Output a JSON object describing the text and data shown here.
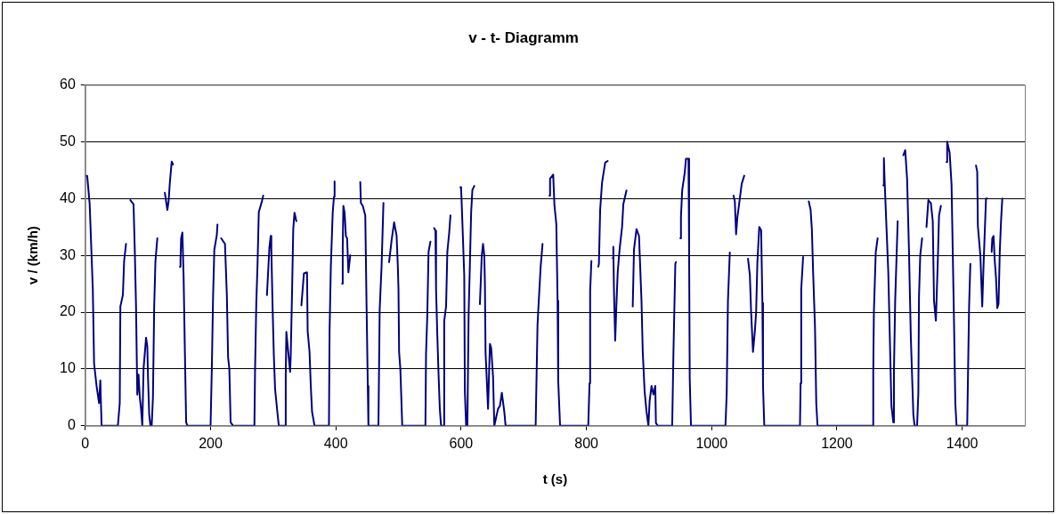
{
  "chart_data": {
    "type": "line",
    "title": "v - t- Diagramm",
    "xlabel": "t (s)",
    "ylabel": "v / (km/h)",
    "xlim": [
      0,
      1500
    ],
    "xticks": [
      0,
      200,
      400,
      600,
      800,
      1000,
      1200,
      1400
    ],
    "ylim": [
      0,
      60
    ],
    "yticks": [
      0,
      10,
      20,
      30,
      40,
      50,
      60
    ],
    "grid": "y",
    "legend": false,
    "marker": "none",
    "line_style": "solid",
    "series": [
      {
        "color": "#000080",
        "x": [
          0,
          3,
          7,
          12,
          14,
          18,
          22,
          24,
          26,
          52,
          55,
          56,
          60,
          62,
          65,
          68,
          72,
          77,
          79,
          81,
          83,
          85,
          87,
          89,
          91,
          93,
          97,
          99,
          100,
          102,
          104,
          106,
          108,
          110,
          112,
          115,
          121,
          127,
          131,
          133,
          135,
          138,
          140,
          145,
          151,
          152,
          153,
          155,
          157,
          159,
          161,
          163,
          200,
          202,
          204,
          206,
          210,
          211,
          214,
          217,
          223,
          226,
          228,
          230,
          232,
          236,
          270,
          271,
          273,
          275,
          277,
          282,
          284,
          287,
          290,
          294,
          296,
          297,
          299,
          301,
          303,
          307,
          309,
          319,
          320,
          321,
          327,
          328,
          330,
          332,
          334,
          337,
          341,
          345,
          349,
          354,
          355,
          358,
          360,
          362,
          366,
          389,
          390,
          392,
          395,
          397,
          398,
          404,
          410,
          411,
          412,
          414,
          416,
          418,
          420,
          423,
          431,
          439,
          440,
          443,
          447,
          449,
          451,
          452,
          468,
          470,
          473,
          476,
          480,
          485,
          489,
          493,
          497,
          499,
          500,
          501,
          503,
          506,
          543,
          544,
          546,
          548,
          551,
          554,
          557,
          559,
          560,
          562,
          564,
          566,
          568,
          572,
          573,
          576,
          578,
          581,
          583,
          591,
          599,
          600,
          601,
          605,
          606,
          608,
          610,
          612,
          614,
          616,
          618,
          621,
          625,
          630,
          633,
          635,
          637,
          638,
          639,
          643,
          646,
          648,
          651,
          653,
          659,
          662,
          665,
          669,
          671,
          719,
          722,
          724,
          727,
          730,
          735,
          741,
          742,
          747,
          749,
          752,
          754,
          755,
          758,
          803,
          805,
          806,
          808,
          813,
          819,
          820,
          822,
          825,
          830,
          834,
          838,
          842,
          843,
          844,
          846,
          848,
          850,
          853,
          857,
          859,
          864,
          869,
          874,
          876,
          880,
          884,
          888,
          890,
          893,
          896,
          899,
          901,
          904,
          907,
          910,
          911,
          914,
          937,
          939,
          942,
          943,
          946,
          950,
          951,
          953,
          957,
          959,
          963,
          964,
          965,
          967,
          1022,
          1024,
          1026,
          1029,
          1032,
          1035,
          1037,
          1039,
          1041,
          1045,
          1048,
          1052,
          1055,
          1058,
          1061,
          1063,
          1066,
          1069,
          1071,
          1073,
          1076,
          1079,
          1081,
          1082,
          1084,
          1141,
          1142,
          1143,
          1146,
          1150,
          1155,
          1158,
          1160,
          1162,
          1165,
          1167,
          1169,
          1257,
          1258,
          1259,
          1262,
          1265,
          1270,
          1274,
          1275,
          1276,
          1278,
          1282,
          1285,
          1287,
          1290,
          1291,
          1293,
          1297,
          1302,
          1306,
          1309,
          1312,
          1315,
          1318,
          1322,
          1324,
          1328,
          1330,
          1331,
          1333,
          1336,
          1340,
          1343,
          1346,
          1350,
          1353,
          1355,
          1358,
          1361,
          1363,
          1366,
          1371,
          1375,
          1376,
          1380,
          1383,
          1387,
          1389,
          1391,
          1408,
          1411,
          1413,
          1418,
          1422,
          1424,
          1425,
          1429,
          1432,
          1434,
          1438,
          1440,
          1444,
          1447,
          1448,
          1450,
          1452,
          1454,
          1456,
          1458,
          1460,
          1462,
          1464
        ],
        "values": [
          44,
          44,
          39,
          24,
          11,
          7,
          4,
          8,
          0,
          0,
          4,
          21,
          23,
          29,
          32,
          null,
          39.7,
          39,
          31,
          21,
          5.5,
          9,
          5,
          3,
          0,
          10,
          15.5,
          14,
          9,
          2,
          0,
          0,
          5,
          21,
          29,
          33,
          null,
          41,
          38,
          39.5,
          42.8,
          46.5,
          46,
          null,
          28,
          29.3,
          33,
          34,
          26,
          13,
          0.6,
          0,
          0,
          10,
          22.7,
          31,
          33.6,
          35.4,
          null,
          33,
          32,
          23,
          12,
          10,
          0.6,
          0,
          0,
          9.5,
          21.6,
          28.5,
          37.6,
          39.5,
          40.5,
          null,
          23,
          31.5,
          33.4,
          31,
          21,
          12.4,
          6.5,
          2,
          0,
          0,
          8.7,
          16.5,
          9.5,
          12.4,
          23,
          34.6,
          37.5,
          36,
          null,
          21.2,
          26.8,
          27,
          16.7,
          13,
          7,
          2.5,
          0,
          0,
          16.7,
          28,
          37.5,
          40.3,
          43,
          null,
          25,
          31.5,
          38.7,
          37.5,
          33.4,
          33,
          27,
          30,
          null,
          42.9,
          39.2,
          38.7,
          37,
          21.5,
          7,
          0,
          0,
          20.5,
          28,
          39.2,
          null,
          28.8,
          32.6,
          35.8,
          33.5,
          28,
          24,
          13,
          10,
          0,
          0,
          12.7,
          19.4,
          30.6,
          32.4,
          null,
          34.8,
          34.3,
          24,
          16,
          9,
          3,
          0,
          0,
          18.4,
          21,
          30.6,
          34,
          37,
          null,
          42,
          41.7,
          39,
          26.5,
          6,
          0,
          0,
          19.7,
          28.3,
          37.5,
          41.5,
          42.2,
          null,
          21.4,
          30,
          32,
          30,
          25,
          13,
          3,
          14.4,
          13.7,
          8.6,
          0,
          3,
          3.5,
          5.8,
          2.4,
          0,
          0,
          17.8,
          22,
          28,
          32,
          null,
          40.5,
          43.5,
          44.2,
          38.8,
          35.5,
          22,
          8,
          0,
          0,
          7.5,
          23.7,
          29,
          null,
          28,
          28.5,
          38,
          42.8,
          46.3,
          46.6,
          null,
          29.5,
          31.5,
          24,
          15,
          21.5,
          27,
          31,
          35,
          39,
          41.4,
          null,
          21,
          31,
          34.6,
          33.4,
          22,
          13,
          6,
          2.5,
          0,
          4.4,
          7,
          5.5,
          7,
          0.5,
          0,
          0,
          13,
          28.5,
          28.8,
          null,
          33,
          36.8,
          41.5,
          44.5,
          47,
          47,
          31,
          8.3,
          0,
          0,
          5.5,
          22,
          30.5,
          null,
          40.5,
          39.5,
          33.7,
          36.6,
          40,
          42.6,
          44,
          null,
          29.4,
          26.5,
          20,
          13,
          16.7,
          20,
          28.8,
          35,
          34.4,
          21.6,
          7,
          0,
          0,
          7.5,
          24,
          29.7,
          null,
          39.5,
          38,
          34.6,
          27,
          17.3,
          4,
          0,
          0,
          9.5,
          20,
          30.6,
          33,
          null,
          42.3,
          47.1,
          43.5,
          38,
          27,
          13,
          3.5,
          0.6,
          9.5,
          22,
          36,
          null,
          47.6,
          48.5,
          43.5,
          31,
          15.5,
          2,
          0,
          0,
          5.8,
          22.7,
          30,
          33,
          null,
          35,
          39.7,
          39.2,
          36,
          22,
          18.5,
          28.8,
          37,
          38.7,
          null,
          46.4,
          50,
          48,
          42.4,
          17.8,
          4,
          0,
          0,
          21,
          28.5,
          null,
          45.8,
          44.7,
          35.2,
          30,
          21,
          28,
          40,
          40,
          null,
          30.6,
          33,
          33.4,
          29,
          26,
          20.7,
          21.5,
          30.6,
          36,
          40
        ]
      }
    ]
  }
}
